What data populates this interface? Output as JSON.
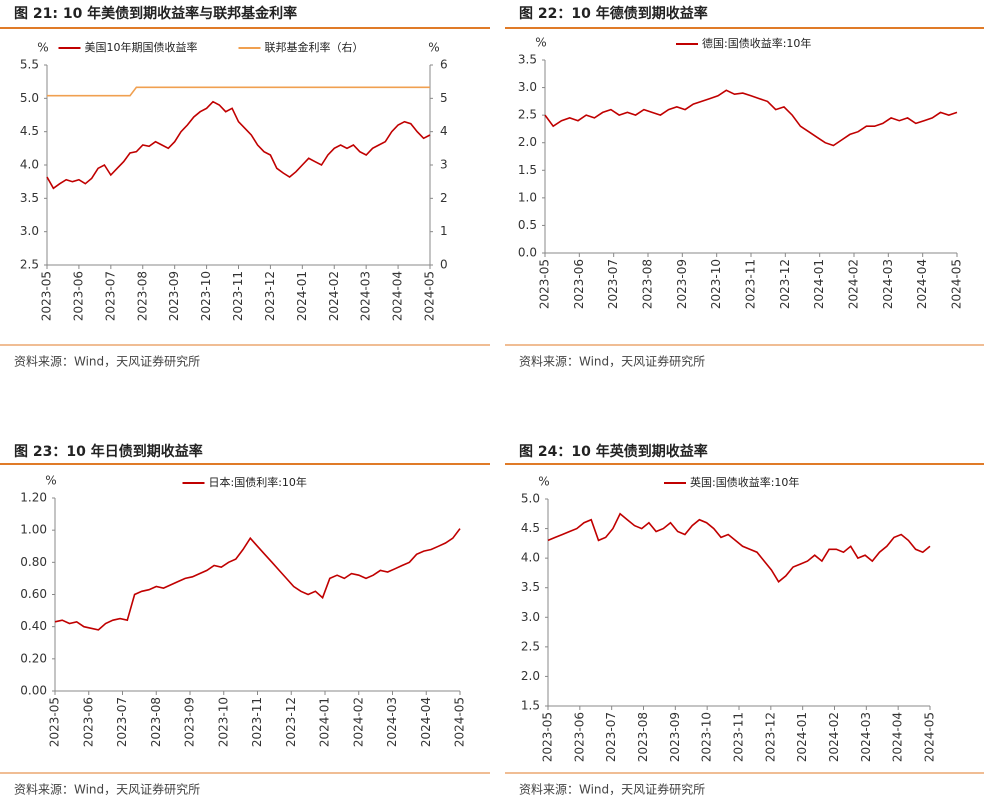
{
  "chart_data": [
    {
      "type": "line",
      "title": "图 21: 10 年美债到期收益率与联邦基金利率",
      "source": "资料来源：Wind，天风证券研究所",
      "y_label": "%",
      "y2_label": "%",
      "xticks": [
        "2023-05",
        "2023-06",
        "2023-07",
        "2023-08",
        "2023-09",
        "2023-10",
        "2023-11",
        "2023-12",
        "2024-01",
        "2024-02",
        "2024-03",
        "2024-04",
        "2024-05"
      ],
      "ylim": [
        2.5,
        5.5
      ],
      "yticks": [
        2.5,
        {
          "value": 3,
          "label": "3.0"
        },
        3.5,
        {
          "value": 4,
          "label": "4.0"
        },
        4.5,
        {
          "value": 5,
          "label": "5.0"
        },
        5.5
      ],
      "y2lim": [
        0,
        6
      ],
      "y2ticks": [
        0,
        1,
        2,
        3,
        4,
        5,
        6
      ],
      "series": [
        {
          "name": "美国10年期国债收益率",
          "color": "#c00000",
          "values": [
            3.82,
            3.65,
            3.72,
            3.78,
            3.75,
            3.78,
            3.72,
            3.8,
            3.95,
            4.0,
            3.85,
            3.95,
            4.05,
            4.18,
            4.2,
            4.3,
            4.28,
            4.35,
            4.3,
            4.25,
            4.35,
            4.5,
            4.6,
            4.72,
            4.8,
            4.85,
            4.95,
            4.9,
            4.8,
            4.85,
            4.65,
            4.55,
            4.45,
            4.3,
            4.2,
            4.15,
            3.95,
            3.88,
            3.82,
            3.9,
            4.0,
            4.1,
            4.05,
            4.0,
            4.15,
            4.25,
            4.3,
            4.25,
            4.3,
            4.2,
            4.15,
            4.25,
            4.3,
            4.35,
            4.5,
            4.6,
            4.65,
            4.62,
            4.5,
            4.4,
            4.45
          ]
        },
        {
          "name": "联邦基金利率（右）",
          "color": "#f0a050",
          "axis": "y2",
          "values": [
            5.08,
            5.08,
            5.08,
            5.08,
            5.08,
            5.08,
            5.08,
            5.08,
            5.08,
            5.08,
            5.08,
            5.08,
            5.08,
            5.08,
            5.33,
            5.33,
            5.33,
            5.33,
            5.33,
            5.33,
            5.33,
            5.33,
            5.33,
            5.33,
            5.33,
            5.33,
            5.33,
            5.33,
            5.33,
            5.33,
            5.33,
            5.33,
            5.33,
            5.33,
            5.33,
            5.33,
            5.33,
            5.33,
            5.33,
            5.33,
            5.33,
            5.33,
            5.33,
            5.33,
            5.33,
            5.33,
            5.33,
            5.33,
            5.33,
            5.33,
            5.33,
            5.33,
            5.33,
            5.33,
            5.33,
            5.33,
            5.33,
            5.33,
            5.33,
            5.33,
            5.33
          ]
        }
      ]
    },
    {
      "type": "line",
      "title": "图 22：10 年德债到期收益率",
      "source": "资料来源：Wind，天风证券研究所",
      "y_label": "%",
      "xticks": [
        "2023-05",
        "2023-06",
        "2023-07",
        "2023-08",
        "2023-09",
        "2023-10",
        "2023-11",
        "2023-12",
        "2024-01",
        "2024-02",
        "2024-03",
        "2024-04",
        "2024-05"
      ],
      "ylim": [
        0,
        3.5
      ],
      "yticks": [
        {
          "value": 0,
          "label": "0.0"
        },
        0.5,
        {
          "value": 1,
          "label": "1.0"
        },
        1.5,
        {
          "value": 2,
          "label": "2.0"
        },
        2.5,
        {
          "value": 3,
          "label": "3.0"
        },
        3.5
      ],
      "series": [
        {
          "name": "德国:国债收益率:10年",
          "color": "#c00000",
          "values": [
            2.5,
            2.3,
            2.4,
            2.45,
            2.4,
            2.5,
            2.45,
            2.55,
            2.6,
            2.5,
            2.55,
            2.5,
            2.6,
            2.55,
            2.5,
            2.6,
            2.65,
            2.6,
            2.7,
            2.75,
            2.8,
            2.85,
            2.95,
            2.88,
            2.9,
            2.85,
            2.8,
            2.75,
            2.6,
            2.65,
            2.5,
            2.3,
            2.2,
            2.1,
            2.0,
            1.95,
            2.05,
            2.15,
            2.2,
            2.3,
            2.3,
            2.35,
            2.45,
            2.4,
            2.45,
            2.35,
            2.4,
            2.45,
            2.55,
            2.5,
            2.55
          ]
        }
      ]
    },
    {
      "type": "line",
      "title": "图 23：10 年日债到期收益率",
      "source": "资料来源：Wind，天风证券研究所",
      "y_label": "%",
      "xticks": [
        "2023-05",
        "2023-06",
        "2023-07",
        "2023-08",
        "2023-09",
        "2023-10",
        "2023-11",
        "2023-12",
        "2024-01",
        "2024-02",
        "2024-03",
        "2024-04",
        "2024-05"
      ],
      "ylim": [
        0,
        1.2
      ],
      "yticks": [
        {
          "value": 0,
          "label": "0.00"
        },
        {
          "value": 0.2,
          "label": "0.20"
        },
        {
          "value": 0.4,
          "label": "0.40"
        },
        {
          "value": 0.6,
          "label": "0.60"
        },
        {
          "value": 0.8,
          "label": "0.80"
        },
        {
          "value": 1,
          "label": "1.00"
        },
        {
          "value": 1.2,
          "label": "1.20"
        }
      ],
      "series": [
        {
          "name": "日本:国债利率:10年",
          "color": "#c00000",
          "values": [
            0.43,
            0.44,
            0.42,
            0.43,
            0.4,
            0.39,
            0.38,
            0.42,
            0.44,
            0.45,
            0.44,
            0.6,
            0.62,
            0.63,
            0.65,
            0.64,
            0.66,
            0.68,
            0.7,
            0.71,
            0.73,
            0.75,
            0.78,
            0.77,
            0.8,
            0.82,
            0.88,
            0.95,
            0.9,
            0.85,
            0.8,
            0.75,
            0.7,
            0.65,
            0.62,
            0.6,
            0.62,
            0.58,
            0.7,
            0.72,
            0.7,
            0.73,
            0.72,
            0.7,
            0.72,
            0.75,
            0.74,
            0.76,
            0.78,
            0.8,
            0.85,
            0.87,
            0.88,
            0.9,
            0.92,
            0.95,
            1.01
          ]
        }
      ]
    },
    {
      "type": "line",
      "title": "图 24：10 年英债到期收益率",
      "source": "资料来源：Wind，天风证券研究所",
      "y_label": "%",
      "xticks": [
        "2023-05",
        "2023-06",
        "2023-07",
        "2023-08",
        "2023-09",
        "2023-10",
        "2023-11",
        "2023-12",
        "2024-01",
        "2024-02",
        "2024-03",
        "2024-04",
        "2024-05"
      ],
      "ylim": [
        1.5,
        5
      ],
      "yticks": [
        1.5,
        {
          "value": 2,
          "label": "2.0"
        },
        2.5,
        {
          "value": 3,
          "label": "3.0"
        },
        3.5,
        {
          "value": 4,
          "label": "4.0"
        },
        4.5,
        {
          "value": 5,
          "label": "5.0"
        }
      ],
      "series": [
        {
          "name": "英国:国债收益率:10年",
          "color": "#c00000",
          "values": [
            4.3,
            4.35,
            4.4,
            4.45,
            4.5,
            4.6,
            4.65,
            4.3,
            4.35,
            4.5,
            4.75,
            4.65,
            4.55,
            4.5,
            4.6,
            4.45,
            4.5,
            4.6,
            4.45,
            4.4,
            4.55,
            4.65,
            4.6,
            4.5,
            4.35,
            4.4,
            4.3,
            4.2,
            4.15,
            4.1,
            3.95,
            3.8,
            3.6,
            3.7,
            3.85,
            3.9,
            3.95,
            4.05,
            3.95,
            4.15,
            4.15,
            4.1,
            4.2,
            4.0,
            4.05,
            3.95,
            4.1,
            4.2,
            4.35,
            4.4,
            4.3,
            4.15,
            4.1,
            4.2
          ]
        }
      ]
    }
  ]
}
